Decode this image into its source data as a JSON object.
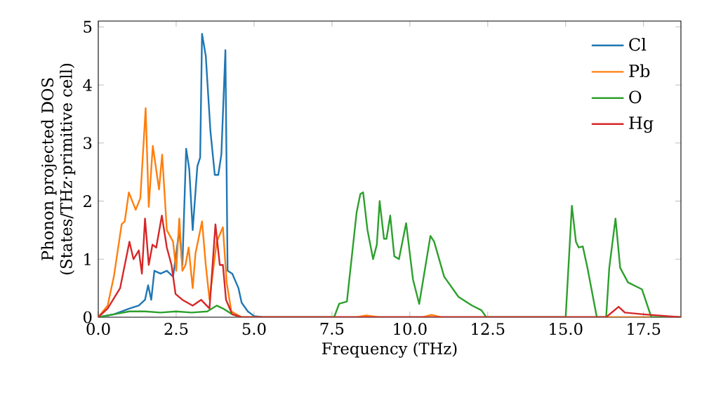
{
  "chart_data": {
    "type": "line",
    "xlabel": "Frequency (THz)",
    "ylabel": "Phonon projected DOS\n(States/THz·primitive cell)",
    "xlim": [
      0,
      18.7
    ],
    "ylim": [
      0,
      5.1
    ],
    "xticks": [
      {
        "value": 0,
        "label": "0.0"
      },
      {
        "value": 2.5,
        "label": "2.5"
      },
      {
        "value": 5,
        "label": "5.0"
      },
      {
        "value": 7.5,
        "label": "7.5"
      },
      {
        "value": 10,
        "label": "10.0"
      },
      {
        "value": 12.5,
        "label": "12.5"
      },
      {
        "value": 15,
        "label": "15.0"
      },
      {
        "value": 17.5,
        "label": "17.5"
      }
    ],
    "yticks": [
      0,
      1,
      2,
      3,
      4,
      5
    ],
    "grid": false,
    "legend": "top right",
    "marker": "none",
    "line_style": "solid",
    "series": [
      {
        "name": "Cl",
        "color": "#1f77b4",
        "x": [
          0,
          0.5,
          1.0,
          1.3,
          1.5,
          1.6,
          1.7,
          1.8,
          2.0,
          2.2,
          2.4,
          2.6,
          2.7,
          2.82,
          2.92,
          3.03,
          3.18,
          3.27,
          3.33,
          3.45,
          3.6,
          3.74,
          3.85,
          3.95,
          4.08,
          4.15,
          4.3,
          4.5,
          4.6,
          4.8,
          5.0,
          5.3,
          18.7
        ],
        "values": [
          0,
          0.05,
          0.15,
          0.2,
          0.3,
          0.55,
          0.3,
          0.8,
          0.75,
          0.8,
          0.7,
          1.5,
          0.9,
          2.9,
          2.55,
          1.5,
          2.6,
          2.75,
          4.88,
          4.5,
          3.2,
          2.45,
          2.45,
          2.8,
          4.6,
          0.8,
          0.75,
          0.5,
          0.25,
          0.1,
          0.02,
          0,
          0
        ]
      },
      {
        "name": "Pb",
        "color": "#ff7f0e",
        "x": [
          0,
          0.3,
          0.5,
          0.75,
          0.85,
          0.98,
          1.2,
          1.35,
          1.52,
          1.62,
          1.75,
          1.95,
          2.05,
          2.2,
          2.4,
          2.5,
          2.6,
          2.7,
          2.8,
          2.9,
          3.03,
          3.12,
          3.33,
          3.45,
          3.57,
          3.8,
          4.0,
          4.12,
          4.27,
          4.6,
          8.3,
          8.6,
          9.0,
          10.4,
          10.7,
          11.0,
          18.7
        ],
        "values": [
          0,
          0.2,
          0.7,
          1.6,
          1.65,
          2.15,
          1.85,
          2.05,
          3.6,
          1.9,
          2.95,
          2.2,
          2.8,
          1.5,
          1.3,
          0.8,
          1.7,
          0.8,
          0.9,
          1.2,
          0.5,
          1.1,
          1.65,
          0.9,
          0.3,
          1.3,
          1.55,
          0.6,
          0.1,
          0,
          0,
          0.03,
          0,
          0,
          0.04,
          0,
          0
        ]
      },
      {
        "name": "O",
        "color": "#2ca02c",
        "x": [
          0,
          0.5,
          1.0,
          1.5,
          2.0,
          2.5,
          3.0,
          3.5,
          3.8,
          4.0,
          4.3,
          4.6,
          7.57,
          7.73,
          7.98,
          8.29,
          8.41,
          8.5,
          8.64,
          8.82,
          8.94,
          9.03,
          9.17,
          9.25,
          9.37,
          9.5,
          9.65,
          9.88,
          10.1,
          10.3,
          10.66,
          10.78,
          11.1,
          11.56,
          12.0,
          12.3,
          12.45,
          15.0,
          15.2,
          15.33,
          15.42,
          15.55,
          15.7,
          16.0,
          16.3,
          16.4,
          16.6,
          16.75,
          17.0,
          17.45,
          17.75,
          18.7
        ],
        "values": [
          0,
          0.05,
          0.1,
          0.1,
          0.08,
          0.1,
          0.08,
          0.1,
          0.2,
          0.15,
          0.05,
          0,
          0,
          0.23,
          0.27,
          1.8,
          2.12,
          2.15,
          1.5,
          1.0,
          1.25,
          2.0,
          1.35,
          1.35,
          1.75,
          1.05,
          1.0,
          1.62,
          0.65,
          0.23,
          1.4,
          1.3,
          0.7,
          0.35,
          0.2,
          0.12,
          0,
          0,
          1.92,
          1.3,
          1.2,
          1.22,
          0.85,
          0,
          0,
          0.85,
          1.7,
          0.85,
          0.6,
          0.48,
          0,
          0
        ]
      },
      {
        "name": "Hg",
        "color": "#d62728",
        "x": [
          0,
          0.3,
          0.7,
          1.0,
          1.13,
          1.3,
          1.4,
          1.5,
          1.62,
          1.74,
          1.86,
          2.04,
          2.2,
          2.35,
          2.48,
          2.7,
          3.03,
          3.3,
          3.57,
          3.76,
          3.9,
          4.0,
          4.1,
          4.3,
          4.6,
          16.3,
          16.7,
          16.9,
          17.5,
          18.7
        ],
        "values": [
          0,
          0.15,
          0.5,
          1.3,
          1.0,
          1.15,
          0.75,
          1.7,
          0.9,
          1.25,
          1.2,
          1.75,
          1.2,
          0.9,
          0.4,
          0.3,
          0.2,
          0.3,
          0.15,
          1.6,
          0.9,
          0.9,
          0.3,
          0.05,
          0,
          0,
          0.18,
          0.08,
          0.05,
          0
        ]
      }
    ]
  }
}
